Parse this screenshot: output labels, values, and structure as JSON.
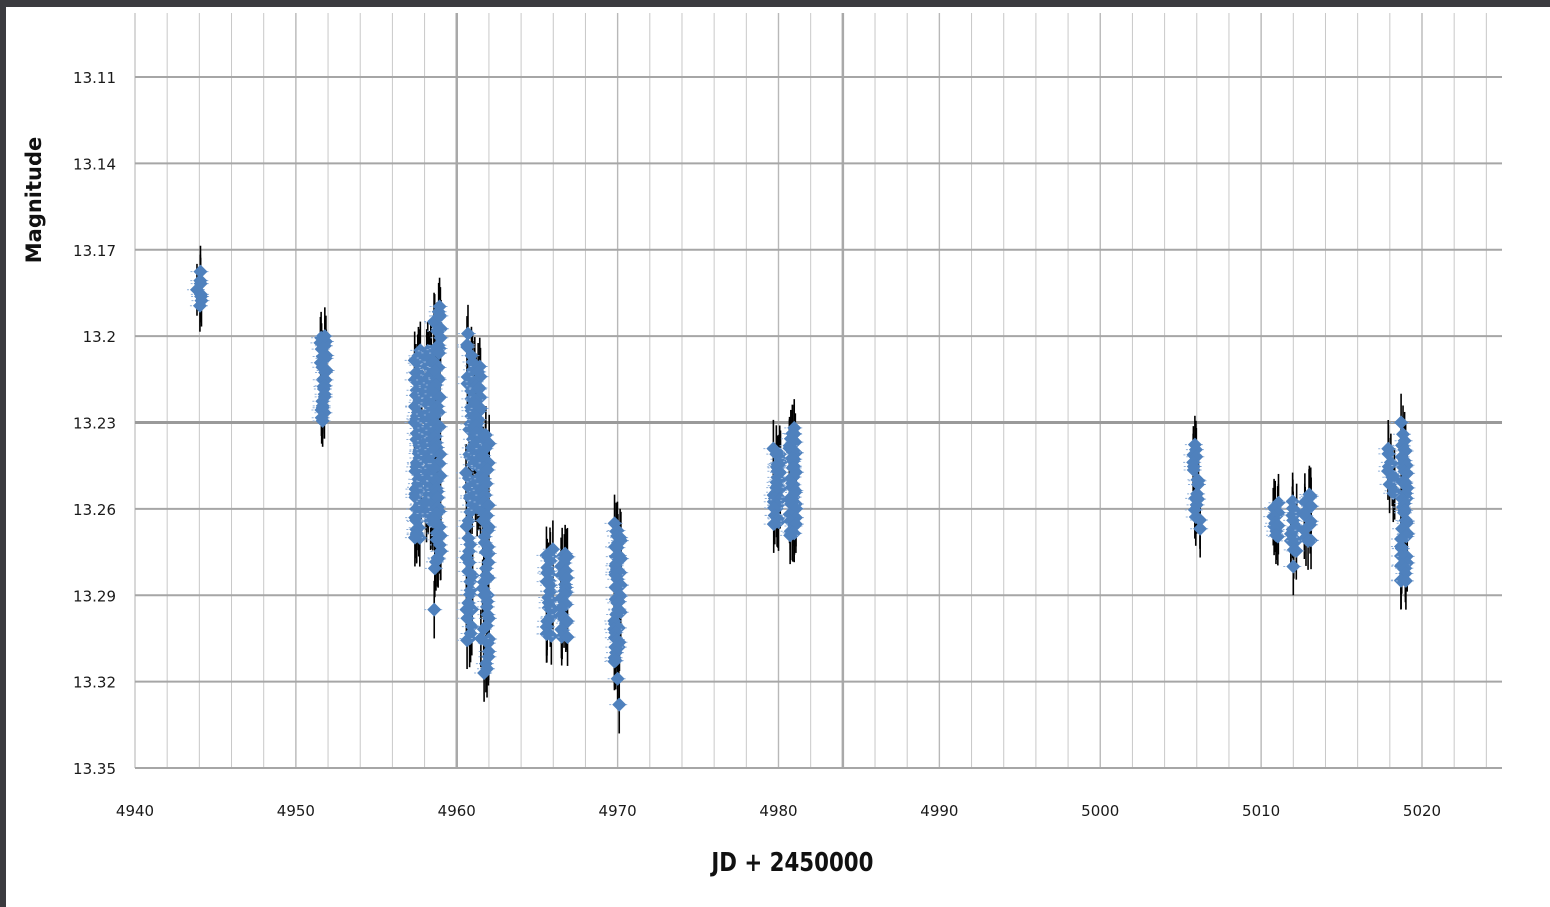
{
  "chart_data": {
    "type": "scatter",
    "xlabel": "JD + 2450000",
    "ylabel": "Magnitude",
    "xlim": [
      4940,
      5025
    ],
    "ylim": [
      13.09,
      13.35
    ],
    "y_inverted": true,
    "grid": true,
    "legend": "none",
    "marker_color": "#4f81bd",
    "errorbar_color": "#000000",
    "x_ticks": [
      4940,
      4950,
      4960,
      4970,
      4980,
      4990,
      5000,
      5010,
      5020
    ],
    "x_tick_labels": [
      "4940",
      "4950",
      "4960",
      "4970",
      "4980",
      "4990",
      "5000",
      "5010",
      "5020"
    ],
    "y_ticks": [
      13.11,
      13.14,
      13.17,
      13.2,
      13.23,
      13.26,
      13.29,
      13.32,
      13.35
    ],
    "y_tick_labels": [
      "13.11",
      "13.14",
      "13.17",
      "13.2",
      "13.23",
      "13.26",
      "13.29",
      "13.32",
      "13.35"
    ],
    "clusters": [
      {
        "x": 4944.0,
        "ymin": 13.178,
        "ymax": 13.19,
        "n": 8,
        "err": 0.009
      },
      {
        "x": 4951.7,
        "ymin": 13.2,
        "ymax": 13.23,
        "n": 26,
        "err": 0.009
      },
      {
        "x": 4957.6,
        "ymin": 13.205,
        "ymax": 13.27,
        "n": 60,
        "err": 0.01
      },
      {
        "x": 4958.3,
        "ymin": 13.205,
        "ymax": 13.265,
        "n": 70,
        "err": 0.01
      },
      {
        "x": 4958.8,
        "ymin": 13.19,
        "ymax": 13.28,
        "n": 60,
        "err": 0.01
      },
      {
        "x": 4960.8,
        "ymin": 13.2,
        "ymax": 13.305,
        "n": 45,
        "err": 0.01
      },
      {
        "x": 4961.3,
        "ymin": 13.21,
        "ymax": 13.26,
        "n": 40,
        "err": 0.01
      },
      {
        "x": 4961.8,
        "ymin": 13.235,
        "ymax": 13.315,
        "n": 40,
        "err": 0.01
      },
      {
        "x": 4965.8,
        "ymin": 13.275,
        "ymax": 13.305,
        "n": 26,
        "err": 0.01
      },
      {
        "x": 4966.7,
        "ymin": 13.275,
        "ymax": 13.305,
        "n": 26,
        "err": 0.01
      },
      {
        "x": 4970.0,
        "ymin": 13.266,
        "ymax": 13.312,
        "n": 45,
        "err": 0.01
      },
      {
        "x": 4979.9,
        "ymin": 13.24,
        "ymax": 13.265,
        "n": 35,
        "err": 0.01
      },
      {
        "x": 4980.9,
        "ymin": 13.232,
        "ymax": 13.27,
        "n": 40,
        "err": 0.01
      },
      {
        "x": 5006.0,
        "ymin": 13.237,
        "ymax": 13.266,
        "n": 18,
        "err": 0.01
      },
      {
        "x": 5010.9,
        "ymin": 13.258,
        "ymax": 13.27,
        "n": 12,
        "err": 0.01
      },
      {
        "x": 5012.0,
        "ymin": 13.258,
        "ymax": 13.275,
        "n": 12,
        "err": 0.01
      },
      {
        "x": 5012.9,
        "ymin": 13.255,
        "ymax": 13.272,
        "n": 12,
        "err": 0.01
      },
      {
        "x": 5018.1,
        "ymin": 13.24,
        "ymax": 13.255,
        "n": 10,
        "err": 0.01
      },
      {
        "x": 5018.9,
        "ymin": 13.235,
        "ymax": 13.285,
        "n": 45,
        "err": 0.01
      }
    ],
    "points": [
      {
        "x": 4951.8,
        "y": 13.2
      },
      {
        "x": 4957.4,
        "y": 13.27
      },
      {
        "x": 4958.6,
        "y": 13.295
      },
      {
        "x": 4958.9,
        "y": 13.193
      },
      {
        "x": 4958.8,
        "y": 13.277
      },
      {
        "x": 4960.6,
        "y": 13.295
      },
      {
        "x": 4960.8,
        "y": 13.305
      },
      {
        "x": 4961.5,
        "y": 13.305
      },
      {
        "x": 4961.7,
        "y": 13.317
      },
      {
        "x": 4961.8,
        "y": 13.275
      },
      {
        "x": 4961.7,
        "y": 13.29
      },
      {
        "x": 4966.8,
        "y": 13.277
      },
      {
        "x": 4969.8,
        "y": 13.313
      },
      {
        "x": 4970.0,
        "y": 13.319
      },
      {
        "x": 4970.1,
        "y": 13.328
      },
      {
        "x": 5012.0,
        "y": 13.28
      },
      {
        "x": 5013.0,
        "y": 13.255
      },
      {
        "x": 5018.7,
        "y": 13.23
      },
      {
        "x": 5019.0,
        "y": 13.285
      }
    ]
  }
}
